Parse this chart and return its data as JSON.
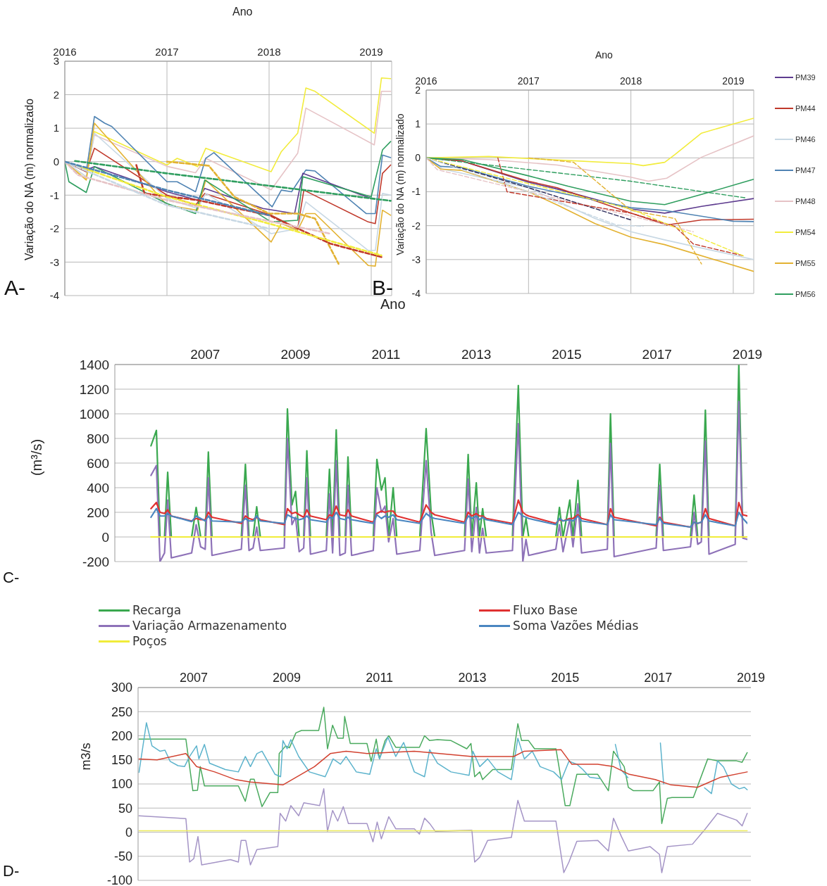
{
  "chart_data": [
    {
      "type": "line",
      "xlabel": "Ano",
      "ylabel": "Variação do NA (m) normalizado",
      "annotations": [
        "A-"
      ],
      "xlim": [
        2016,
        2019.2
      ],
      "xticks": [
        2016,
        2017,
        2018,
        2019
      ],
      "ylim": [
        -4,
        3
      ],
      "yticks": [
        -4,
        -3,
        -2,
        -1,
        0,
        1,
        2,
        3
      ],
      "grid": true,
      "line_style": "solid",
      "series": [
        {
          "color": "#f2ec3c",
          "x": [
            2016,
            2016.21,
            2016.29,
            2017,
            2017.1,
            2017.3,
            2017.38,
            2018.02,
            2018.12,
            2018.28,
            2018.36,
            2018.45,
            2019.03,
            2019.1,
            2019.19
          ],
          "values": [
            0,
            -0.53,
            0.9,
            -0.1,
            0.1,
            -0.15,
            0.4,
            -0.3,
            0.3,
            0.85,
            2.2,
            2.1,
            0.85,
            2.5,
            2.48
          ]
        },
        {
          "color": "#e6c3c6",
          "x": [
            2016,
            2016.21,
            2016.29,
            2017,
            2017.28,
            2017.38,
            2018.02,
            2018.28,
            2018.36,
            2019.03,
            2019.1,
            2019.19
          ],
          "values": [
            0,
            -0.45,
            0.8,
            -0.14,
            -0.33,
            0.1,
            -0.84,
            0.25,
            1.6,
            0.5,
            2.1,
            2.1
          ]
        },
        {
          "color": "#4f83b3",
          "x": [
            2016,
            2016.21,
            2016.29,
            2016.39,
            2016.46,
            2017,
            2017.1,
            2017.28,
            2017.38,
            2017.46,
            2018.03,
            2018.12,
            2018.22,
            2018.36,
            2018.45,
            2018.95,
            2019.04,
            2019.11,
            2019.19
          ],
          "values": [
            0,
            -0.3,
            1.35,
            1.15,
            1.05,
            -0.6,
            -0.6,
            -0.9,
            0.1,
            0.27,
            -1.35,
            -0.85,
            -0.9,
            -0.25,
            -0.28,
            -1.55,
            -1.55,
            0.2,
            0.12
          ]
        },
        {
          "color": "#5e3c8f",
          "x": [
            2016,
            2016.21,
            2016.29,
            2017,
            2017.3,
            2017.37,
            2017.94,
            2018.25,
            2018.33,
            2019.0
          ],
          "values": [
            0,
            -0.25,
            -0.15,
            -0.9,
            -1.15,
            -0.8,
            -1.4,
            -1.55,
            -0.35,
            -1.1
          ]
        },
        {
          "color": "#c0392b",
          "x": [
            2016,
            2016.21,
            2016.29,
            2017,
            2017.28,
            2017.37,
            2018.02,
            2018.28,
            2018.34,
            2018.97,
            2019.04,
            2019.11,
            2019.19
          ],
          "values": [
            0,
            -0.3,
            0.4,
            -1.0,
            -1.3,
            -0.95,
            -1.6,
            -2.0,
            -0.85,
            -1.8,
            -1.85,
            -0.35,
            -0.1
          ]
        },
        {
          "color": "#c8d8e4",
          "x": [
            2016,
            2016.21,
            2016.29,
            2017,
            2017.3,
            2017.38,
            2018.02,
            2018.28,
            2018.36,
            2018.97,
            2019.04,
            2019.11,
            2019.19
          ],
          "values": [
            0,
            -0.45,
            0.85,
            -1.1,
            -1.4,
            -0.95,
            -2.15,
            -2.0,
            -1.2,
            -2.65,
            -2.65,
            -0.95,
            -1.0
          ]
        },
        {
          "color": "#e3b232",
          "x": [
            2016,
            2016.21,
            2016.29,
            2017,
            2017.3,
            2017.38,
            2018.02,
            2018.12,
            2018.28,
            2018.36,
            2018.45,
            2018.97,
            2019.04,
            2019.11,
            2019.19
          ],
          "values": [
            0,
            -0.55,
            1.15,
            -1.3,
            -1.45,
            -0.55,
            -2.4,
            -1.85,
            -2.05,
            -1.55,
            -1.55,
            -3.1,
            -3.12,
            -1.45,
            -1.6
          ]
        },
        {
          "color": "#2f9e5f",
          "x": [
            2016,
            2016.04,
            2016.21,
            2016.29,
            2017,
            2017.28,
            2017.37,
            2018.02,
            2018.28,
            2018.33,
            2019.0,
            2019.11,
            2019.19
          ],
          "values": [
            0,
            -0.6,
            -0.92,
            -0.15,
            -1.25,
            -1.55,
            -0.55,
            -1.8,
            -1.75,
            -0.45,
            -1.05,
            0.35,
            0.6
          ]
        },
        {
          "color": "#2f9e5f",
          "line_style": "dashed",
          "x": [
            2016.1,
            2017,
            2018,
            2019.19
          ],
          "values": [
            0.02,
            -0.35,
            -0.72,
            -1.17
          ]
        },
        {
          "color": "#e3b232",
          "line_style": "dashed",
          "x": [
            2017,
            2017.41,
            2017.66,
            2018,
            2018.28,
            2018.45,
            2018.68
          ],
          "values": [
            0,
            -0.12,
            -1.05,
            -1.55,
            -1.55,
            -1.7,
            -3.05
          ]
        },
        {
          "color": "#c0392b",
          "line_style": "dashed",
          "x": [
            2016.7,
            2016.78,
            2017.3,
            2018,
            2018.6,
            2019.1
          ],
          "values": [
            -0.1,
            -0.95,
            -1.15,
            -1.6,
            -2.45,
            -2.85
          ]
        },
        {
          "color": "#f2ec3c",
          "line_style": "dashed",
          "x": [
            2016,
            2017,
            2018,
            2019.1
          ],
          "values": [
            0,
            -1.05,
            -1.85,
            -2.8
          ]
        },
        {
          "color": "#e6c3c6",
          "line_style": "dashed",
          "x": [
            2016,
            2016.13,
            2017,
            2018.6
          ],
          "values": [
            0,
            -0.4,
            -1.15,
            -2.15
          ]
        },
        {
          "color": "#c8d8e4",
          "line_style": "dashed",
          "x": [
            2016,
            2017,
            2018
          ],
          "values": [
            0,
            -1.3,
            -2.0
          ]
        },
        {
          "color": "#4f83b3",
          "line_style": "dashed",
          "x": [
            2016,
            2017,
            2018
          ],
          "values": [
            0,
            -0.85,
            -1.6
          ]
        }
      ]
    },
    {
      "type": "line",
      "xlabel": "Ano",
      "ylabel": "Variação do NA (m) normalizado",
      "annotations": [
        "B-"
      ],
      "xlim": [
        2016,
        2019.2
      ],
      "xticks": [
        2016,
        2017,
        2018,
        2019
      ],
      "ylim": [
        -4,
        2
      ],
      "yticks": [
        -4,
        -3,
        -2,
        -1,
        0,
        1,
        2
      ],
      "grid": true,
      "legend": "right",
      "line_style": "solid",
      "series": [
        {
          "name": "PM39",
          "color": "#5e3c8f",
          "x": [
            2016,
            2016.35,
            2017,
            2017.28,
            2018,
            2018.33,
            2018.69,
            2019.2
          ],
          "values": [
            0,
            -0.09,
            -0.72,
            -0.92,
            -1.51,
            -1.63,
            -1.43,
            -1.2
          ]
        },
        {
          "name": "PM44",
          "color": "#c0392b",
          "x": [
            2016,
            2016.35,
            2017,
            2017.28,
            2018,
            2018.35,
            2018.69,
            2019.2
          ],
          "values": [
            0,
            -0.09,
            -0.69,
            -0.88,
            -1.63,
            -1.98,
            -1.83,
            -1.81
          ]
        },
        {
          "name": "PM46",
          "color": "#c8d8e4",
          "x": [
            2016,
            2016.16,
            2017,
            2017.65,
            2018,
            2018.33,
            2019.2
          ],
          "values": [
            0,
            -0.33,
            -0.88,
            -1.79,
            -2.18,
            -2.42,
            -3.0
          ]
        },
        {
          "name": "PM47",
          "color": "#4f83b3",
          "x": [
            2016,
            2016.14,
            2016.35,
            2017,
            2018,
            2018.33,
            2019,
            2019.2
          ],
          "values": [
            0,
            -0.25,
            -0.29,
            -0.84,
            -1.47,
            -1.55,
            -1.87,
            -1.88
          ]
        },
        {
          "name": "PM48",
          "color": "#e6c3c6",
          "x": [
            2016,
            2016.61,
            2017.28,
            2018,
            2018.17,
            2018.35,
            2018.69,
            2019.2
          ],
          "values": [
            0,
            -0.05,
            -0.21,
            -0.57,
            -0.69,
            -0.6,
            0.02,
            0.65
          ]
        },
        {
          "name": "PM54",
          "color": "#f2ec3c",
          "x": [
            2016,
            2016.61,
            2018,
            2018.12,
            2018.33,
            2018.43,
            2018.69,
            2019,
            2019.2
          ],
          "values": [
            0,
            0.04,
            -0.17,
            -0.23,
            -0.13,
            0.1,
            0.73,
            1.0,
            1.17
          ]
        },
        {
          "name": "PM55",
          "color": "#e3b232",
          "x": [
            2016,
            2016.14,
            2016.35,
            2017,
            2017.28,
            2017.65,
            2018,
            2018.33,
            2019.2
          ],
          "values": [
            0,
            -0.33,
            -0.37,
            -1.0,
            -1.39,
            -1.94,
            -2.34,
            -2.56,
            -3.35
          ]
        },
        {
          "name": "PM56",
          "color": "#2f9e5f",
          "x": [
            2016,
            2016.35,
            2017,
            2017.39,
            2018,
            2018.33,
            2018.69,
            2019.2
          ],
          "values": [
            0,
            -0.05,
            -0.53,
            -0.84,
            -1.28,
            -1.38,
            -1.08,
            -0.63
          ]
        },
        {
          "color": "#2f9e5f",
          "line_style": "dashed",
          "x": [
            2016,
            2018,
            2019.12
          ],
          "values": [
            0,
            -0.69,
            -1.18
          ]
        },
        {
          "color": "#e6c3c6",
          "line_style": "dashed",
          "x": [
            2016,
            2016.11,
            2017,
            2018,
            2018.61
          ],
          "values": [
            0,
            -0.35,
            -1.0,
            -1.71,
            -2.18
          ]
        },
        {
          "color": "#2a2a5a",
          "line_style": "dashed",
          "x": [
            2016,
            2017,
            2018
          ],
          "values": [
            0,
            -0.88,
            -1.83
          ]
        },
        {
          "color": "#c0392b",
          "line_style": "dashed",
          "x": [
            2016.7,
            2016.79,
            2018,
            2018.43,
            2018.61,
            2019.1
          ],
          "values": [
            0,
            -1.0,
            -1.63,
            -2.02,
            -2.54,
            -2.89
          ]
        },
        {
          "color": "#e3b232",
          "line_style": "dashed",
          "x": [
            2017,
            2017.44,
            2018,
            2018.43,
            2018.69
          ],
          "values": [
            0,
            -0.13,
            -1.55,
            -1.79,
            -3.13
          ]
        },
        {
          "color": "#f2ec3c",
          "line_style": "dashed",
          "x": [
            2016,
            2017,
            2018,
            2019.1
          ],
          "values": [
            0,
            -0.76,
            -1.51,
            -2.89
          ]
        },
        {
          "color": "#c8d8e4",
          "line_style": "dashed",
          "x": [
            2016,
            2017,
            2017.86,
            2018.12
          ],
          "values": [
            0,
            -1.0,
            -1.98,
            -2.02
          ]
        }
      ]
    },
    {
      "type": "line",
      "xlabel": "Ano",
      "ylabel": "(m³/s)",
      "annotations": [
        "C-"
      ],
      "xlim": [
        2005,
        2019
      ],
      "xticks": [
        2007,
        2009,
        2011,
        2013,
        2015,
        2017,
        2019
      ],
      "ylim": [
        -200,
        1400
      ],
      "yticks": [
        -200,
        0,
        200,
        400,
        600,
        800,
        1000,
        1200,
        1400
      ],
      "grid": "y",
      "legend": "bottom",
      "line_style": "solid",
      "x": [
        2005.8,
        2005.92,
        2006.0,
        2006.1,
        2006.17,
        2006.25,
        2006.7,
        2006.8,
        2006.9,
        2007.0,
        2007.07,
        2007.15,
        2007.8,
        2007.89,
        2007.97,
        2008.06,
        2008.14,
        2008.22,
        2008.75,
        2008.82,
        2008.92,
        2009.0,
        2009.08,
        2009.18,
        2009.25,
        2009.33,
        2009.68,
        2009.75,
        2009.82,
        2009.9,
        2009.98,
        2010.1,
        2010.16,
        2010.24,
        2010.72,
        2010.8,
        2010.9,
        2010.98,
        2011.06,
        2011.16,
        2011.24,
        2011.75,
        2011.89,
        2012.0,
        2012.08,
        2012.74,
        2012.82,
        2012.9,
        2013.0,
        2013.07,
        2013.14,
        2013.22,
        2013.8,
        2013.93,
        2014.03,
        2014.1,
        2014.16,
        2014.76,
        2014.84,
        2014.92,
        2015.07,
        2015.14,
        2015.25,
        2015.33,
        2015.9,
        2015.97,
        2016.05,
        2016.98,
        2017.06,
        2017.14,
        2017.74,
        2017.82,
        2017.9,
        2017.98,
        2018.07,
        2018.15,
        2018.73,
        2018.81,
        2018.9,
        2019.0
      ],
      "series": [
        {
          "name": "Recarga",
          "color": "#3aa84f",
          "values": [
            740,
            865,
            0,
            0,
            525,
            0,
            0,
            240,
            0,
            0,
            690,
            0,
            0,
            590,
            0,
            0,
            245,
            0,
            0,
            1040,
            260,
            370,
            0,
            0,
            700,
            0,
            0,
            550,
            0,
            870,
            0,
            0,
            650,
            0,
            0,
            630,
            380,
            480,
            0,
            400,
            0,
            0,
            880,
            200,
            0,
            0,
            670,
            0,
            440,
            0,
            230,
            0,
            0,
            1230,
            0,
            150,
            0,
            0,
            240,
            0,
            300,
            0,
            460,
            0,
            0,
            1000,
            0,
            0,
            590,
            0,
            0,
            340,
            0,
            0,
            1030,
            0,
            0,
            1400,
            0,
            0
          ]
        },
        {
          "name": "Variação Armazenamento",
          "color": "#8e72b8",
          "values": [
            500,
            580,
            -200,
            -130,
            300,
            -170,
            -130,
            100,
            -80,
            -100,
            480,
            -150,
            -100,
            420,
            -110,
            -90,
            80,
            -110,
            -90,
            800,
            100,
            160,
            -120,
            -90,
            480,
            -140,
            -110,
            350,
            -130,
            620,
            -150,
            -130,
            420,
            -150,
            -110,
            400,
            200,
            250,
            -40,
            150,
            -140,
            -110,
            620,
            40,
            -150,
            -110,
            470,
            -120,
            240,
            -130,
            70,
            -130,
            -110,
            920,
            -200,
            -20,
            -150,
            -100,
            100,
            -120,
            150,
            -80,
            270,
            -130,
            -100,
            760,
            -160,
            -90,
            420,
            -110,
            -80,
            200,
            -60,
            -40,
            780,
            -140,
            -60,
            1100,
            -10,
            -20
          ]
        },
        {
          "name": "Poços",
          "color": "#f0ec3a",
          "values": [
            0,
            0,
            0,
            0,
            0,
            0,
            0,
            0,
            0,
            0,
            0,
            0,
            0,
            0,
            0,
            0,
            0,
            0,
            0,
            0,
            0,
            0,
            0,
            0,
            0,
            0,
            0,
            0,
            0,
            0,
            0,
            0,
            0,
            0,
            0,
            0,
            0,
            0,
            0,
            0,
            0,
            0,
            0,
            0,
            0,
            0,
            0,
            0,
            0,
            0,
            0,
            0,
            0,
            0,
            0,
            0,
            0,
            0,
            0,
            0,
            0,
            0,
            0,
            0,
            0,
            0,
            0,
            0,
            0,
            0,
            0,
            0,
            0,
            0,
            0,
            0,
            0,
            0,
            0,
            0
          ]
        },
        {
          "name": "Fluxo Base",
          "color": "#e03131",
          "values": [
            230,
            280,
            200,
            190,
            220,
            170,
            130,
            150,
            140,
            140,
            200,
            160,
            110,
            170,
            150,
            140,
            160,
            140,
            100,
            230,
            190,
            200,
            180,
            160,
            220,
            170,
            140,
            180,
            170,
            250,
            180,
            170,
            220,
            170,
            120,
            190,
            210,
            200,
            210,
            210,
            170,
            120,
            260,
            200,
            180,
            120,
            200,
            170,
            190,
            170,
            170,
            150,
            110,
            300,
            200,
            180,
            170,
            110,
            140,
            130,
            150,
            150,
            180,
            150,
            100,
            230,
            160,
            90,
            160,
            120,
            80,
            120,
            110,
            120,
            230,
            150,
            90,
            280,
            180,
            170
          ]
        },
        {
          "name": "Soma Vazões Médias",
          "color": "#4a86c0",
          "values": [
            160,
            230,
            170,
            170,
            190,
            170,
            125,
            170,
            150,
            130,
            170,
            130,
            120,
            150,
            130,
            130,
            170,
            130,
            110,
            180,
            160,
            150,
            140,
            150,
            170,
            140,
            120,
            160,
            150,
            200,
            150,
            140,
            160,
            140,
            110,
            180,
            150,
            170,
            160,
            180,
            140,
            110,
            190,
            160,
            150,
            110,
            170,
            150,
            170,
            140,
            160,
            140,
            100,
            200,
            170,
            160,
            150,
            100,
            150,
            130,
            140,
            130,
            170,
            130,
            100,
            180,
            140,
            100,
            150,
            110,
            80,
            120,
            110,
            120,
            180,
            130,
            90,
            200,
            150,
            110
          ]
        }
      ]
    },
    {
      "type": "line",
      "ylabel": "m3/s",
      "annotations": [
        "D-"
      ],
      "xlim": [
        2005.8,
        2019
      ],
      "xticks": [
        2007,
        2009,
        2011,
        2013,
        2015,
        2017,
        2019
      ],
      "ylim": [
        -100,
        300
      ],
      "yticks": [
        -100,
        -50,
        0,
        50,
        100,
        150,
        200,
        250,
        300
      ],
      "grid": "y",
      "line_style": "solid",
      "series": [
        {
          "color": "#4aaa5e",
          "x": [
            2005.82,
            2006.83,
            2006.98,
            2007.08,
            2007.14,
            2007.23,
            2007.96,
            2008.11,
            2008.22,
            2008.3,
            2008.47,
            2008.64,
            2008.81,
            2008.84,
            2008.98,
            2009.06,
            2009.2,
            2009.32,
            2009.69,
            2009.8,
            2009.88,
            2009.99,
            2010.1,
            2010.22,
            2010.25,
            2010.37,
            2010.73,
            2010.82,
            2010.93,
            2011.0,
            2011.12,
            2011.2,
            2011.35,
            2011.86,
            2011.97,
            2012.08,
            2012.25,
            2012.54,
            2012.88,
            2012.97,
            2013.05,
            2013.16,
            2013.22,
            2013.44,
            2013.84,
            2013.98,
            2014.06,
            2014.21,
            2014.34,
            2014.8,
            2014.89,
            2015.0,
            2015.1,
            2015.25,
            2015.7,
            2015.93,
            2016.04,
            2016.27,
            2016.36,
            2016.47,
            2016.89,
            2017.03,
            2017.08,
            2017.2,
            2017.3,
            2017.76,
            2018.07,
            2018.28,
            2018.69,
            2018.81,
            2018.92
          ],
          "values": [
            193,
            193,
            86,
            87,
            136,
            96,
            96,
            64,
            110,
            110,
            53,
            82,
            82,
            163,
            179,
            175,
            206,
            211,
            211,
            259,
            173,
            222,
            195,
            195,
            240,
            184,
            184,
            147,
            193,
            152,
            190,
            200,
            176,
            176,
            200,
            190,
            192,
            190,
            173,
            184,
            115,
            125,
            109,
            130,
            130,
            225,
            190,
            190,
            173,
            173,
            122,
            55,
            55,
            120,
            120,
            86,
            168,
            136,
            93,
            86,
            86,
            104,
            18,
            70,
            72,
            72,
            152,
            148,
            148,
            145,
            165
          ]
        },
        {
          "color": "#5cb3cc",
          "x": [
            2005.82,
            2005.98,
            2006.1,
            2006.27,
            2006.38,
            2006.49,
            2006.66,
            2006.8,
            2006.91,
            2007.06,
            2007.11,
            2007.23,
            2007.34,
            2007.68,
            2007.96,
            2008.11,
            2008.22,
            2008.36,
            2008.47,
            2008.75,
            2008.87,
            2008.92,
            2009.01,
            2009.09,
            2009.26,
            2009.49,
            2009.83,
            2010.0,
            2010.16,
            2010.28,
            2010.5,
            2010.79,
            2010.93,
            2011.0,
            2011.18,
            2011.35,
            2011.52,
            2011.75,
            2011.97,
            2012.08,
            2012.25,
            2012.54,
            2012.93,
            2013.01,
            2013.16,
            2013.33,
            2013.55,
            2013.84,
            2013.98,
            2014.12,
            2014.29,
            2014.46,
            2014.75,
            2014.92,
            2015.08,
            2015.25,
            2015.38,
            2015.53,
            2015.76,
            2015.9,
            2016.08,
            2016.2,
            2016.35,
            2016.5,
            2017.05,
            2017.12,
            2017.2,
            2018.0,
            2018.15,
            2018.28,
            2018.41,
            2018.58,
            2018.75,
            2018.86,
            2018.92
          ],
          "values": [
            124,
            227,
            179,
            168,
            170,
            147,
            138,
            136,
            157,
            179,
            152,
            182,
            143,
            130,
            125,
            157,
            136,
            163,
            168,
            120,
            115,
            190,
            173,
            192,
            157,
            125,
            115,
            152,
            141,
            157,
            125,
            120,
            173,
            152,
            197,
            157,
            186,
            125,
            115,
            171,
            143,
            125,
            118,
            168,
            136,
            152,
            125,
            109,
            195,
            152,
            168,
            136,
            125,
            109,
            147,
            141,
            130,
            114,
            111,
            null,
            182,
            130,
            113,
            null,
            185,
            100,
            null,
            92,
            80,
            148,
            135,
            100,
            90,
            93,
            88
          ]
        },
        {
          "color": "#d2412f",
          "x": [
            2005.82,
            2006.21,
            2006.83,
            2007.06,
            2007.45,
            2007.9,
            2008.22,
            2008.92,
            2009.6,
            2009.94,
            2010.28,
            2010.73,
            2011.75,
            2012.99,
            2013.89,
            2014.12,
            2014.91,
            2015.14,
            2015.7,
            2016.04,
            2016.38,
            2016.94,
            2017.28,
            2017.85,
            2018.35,
            2018.92
          ],
          "values": [
            152,
            150,
            163,
            136,
            125,
            109,
            104,
            98,
            136,
            163,
            168,
            163,
            168,
            157,
            157,
            168,
            171,
            141,
            141,
            136,
            120,
            109,
            98,
            93,
            114,
            125
          ]
        },
        {
          "color": "#a494c6",
          "x": [
            2005.82,
            2006.83,
            2006.91,
            2007.0,
            2007.09,
            2007.17,
            2007.79,
            2007.96,
            2008.02,
            2008.12,
            2008.22,
            2008.36,
            2008.81,
            2008.86,
            2008.98,
            2009.09,
            2009.26,
            2009.37,
            2009.71,
            2009.8,
            2009.88,
            2009.99,
            2010.1,
            2010.22,
            2010.33,
            2010.73,
            2010.86,
            2010.95,
            2011.04,
            2011.2,
            2011.35,
            2011.75,
            2011.86,
            2011.97,
            2012.08,
            2012.2,
            2012.99,
            2013.05,
            2013.16,
            2013.33,
            2013.84,
            2013.98,
            2014.12,
            2014.8,
            2014.97,
            2015.08,
            2015.25,
            2015.7,
            2015.93,
            2016.04,
            2016.21,
            2016.36,
            2016.83,
            2017.03,
            2017.08,
            2017.2,
            2017.74,
            2018.02,
            2018.28,
            2018.69,
            2018.81,
            2018.92
          ],
          "values": [
            34,
            28,
            -62,
            -55,
            -9,
            -68,
            -57,
            -62,
            -17,
            -17,
            -68,
            -36,
            -30,
            39,
            23,
            55,
            34,
            61,
            55,
            90,
            2,
            45,
            23,
            53,
            18,
            18,
            -20,
            21,
            -14,
            32,
            7,
            7,
            -4,
            29,
            18,
            2,
            4,
            -62,
            -52,
            -17,
            -11,
            66,
            23,
            23,
            -84,
            -62,
            -19,
            -17,
            -39,
            29,
            -9,
            -39,
            -30,
            -46,
            -84,
            -30,
            -25,
            7,
            39,
            25,
            13,
            39
          ]
        },
        {
          "color": "#ecea5a",
          "x": [
            2005.82,
            2018.92
          ],
          "values": [
            3,
            3
          ]
        }
      ]
    }
  ]
}
